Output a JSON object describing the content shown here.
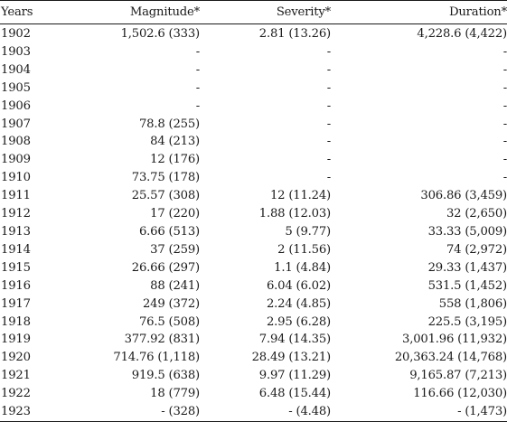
{
  "table": {
    "headers": [
      "Years",
      "Magnitude*",
      "Severity*",
      "Duration*"
    ],
    "rows": [
      [
        "1902",
        "1,502.6 (333)",
        "2.81 (13.26)",
        "4,228.6 (4,422)"
      ],
      [
        "1903",
        "-",
        "-",
        "-"
      ],
      [
        "1904",
        "-",
        "-",
        "-"
      ],
      [
        "1905",
        "-",
        "-",
        "-"
      ],
      [
        "1906",
        "-",
        "-",
        "-"
      ],
      [
        "1907",
        "78.8 (255)",
        "-",
        "-"
      ],
      [
        "1908",
        "84 (213)",
        "-",
        "-"
      ],
      [
        "1909",
        "12 (176)",
        "-",
        "-"
      ],
      [
        "1910",
        "73.75 (178)",
        "-",
        "-"
      ],
      [
        "1911",
        "25.57 (308)",
        "12 (11.24)",
        "306.86 (3,459)"
      ],
      [
        "1912",
        "17 (220)",
        "1.88 (12.03)",
        "32 (2,650)"
      ],
      [
        "1913",
        "6.66 (513)",
        "5 (9.77)",
        "33.33 (5,009)"
      ],
      [
        "1914",
        "37 (259)",
        "2 (11.56)",
        "74 (2,972)"
      ],
      [
        "1915",
        "26.66 (297)",
        "1.1 (4.84)",
        "29.33 (1,437)"
      ],
      [
        "1916",
        "88 (241)",
        "6.04 (6.02)",
        "531.5 (1,452)"
      ],
      [
        "1917",
        "249 (372)",
        "2.24 (4.85)",
        "558 (1,806)"
      ],
      [
        "1918",
        "76.5 (508)",
        "2.95 (6.28)",
        "225.5 (3,195)"
      ],
      [
        "1919",
        "377.92 (831)",
        "7.94 (14.35)",
        "3,001.96 (11,932)"
      ],
      [
        "1920",
        "714.76 (1,118)",
        "28.49 (13.21)",
        "20,363.24 (14,768)"
      ],
      [
        "1921",
        "919.5 (638)",
        "9.97 (11.29)",
        "9,165.87 (7,213)"
      ],
      [
        "1922",
        "18 (779)",
        "6.48 (15.44)",
        "116.66 (12,030)"
      ],
      [
        "1923",
        "- (328)",
        "- (4.48)",
        "- (1,473)"
      ]
    ]
  }
}
